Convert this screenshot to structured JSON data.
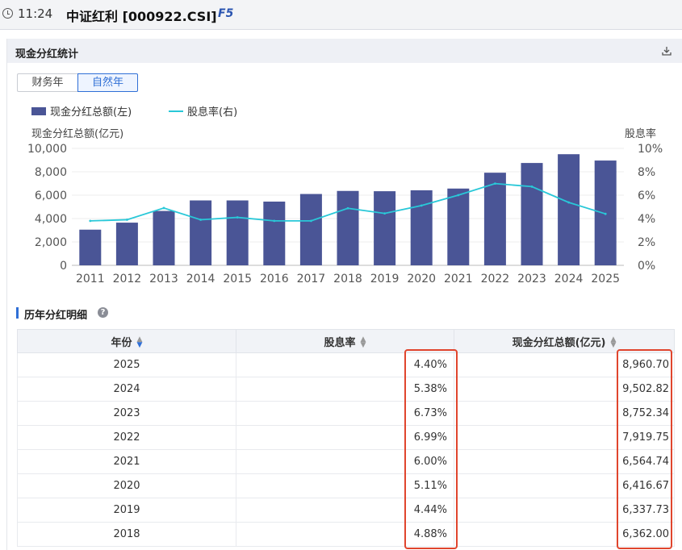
{
  "header": {
    "time": "11:24",
    "title": "中证红利 [000922.CSI]",
    "hotkey": "F5"
  },
  "panel": {
    "title": "现金分红统计",
    "download_icon": "download-icon",
    "toggle": {
      "options": [
        "财务年",
        "自然年"
      ],
      "selected": "自然年"
    }
  },
  "chart_data": {
    "type": "bar",
    "categories": [
      "2011",
      "2012",
      "2013",
      "2014",
      "2015",
      "2016",
      "2017",
      "2018",
      "2019",
      "2020",
      "2021",
      "2022",
      "2023",
      "2024",
      "2025"
    ],
    "series": [
      {
        "name": "现金分红总额(左)",
        "type": "bar",
        "axis": "left",
        "color": "#4a5596",
        "values": [
          3050,
          3650,
          4650,
          5550,
          5550,
          5450,
          6100,
          6362.0,
          6337.73,
          6416.67,
          6564.74,
          7919.75,
          8752.34,
          9502.82,
          8960.7
        ]
      },
      {
        "name": "股息率(右)",
        "type": "line",
        "axis": "right",
        "color": "#29c8d8",
        "values": [
          3.8,
          3.9,
          4.9,
          3.9,
          4.1,
          3.8,
          3.8,
          4.88,
          4.44,
          5.11,
          6.0,
          6.99,
          6.73,
          5.38,
          4.4
        ]
      }
    ],
    "ylabel_left": "现金分红总额(亿元)",
    "ylabel_right": "股息率",
    "ylim_left": [
      0,
      10000
    ],
    "ylim_right": [
      0,
      10
    ],
    "yticks_left": [
      "0",
      "2,000",
      "4,000",
      "6,000",
      "8,000",
      "10,000"
    ],
    "yticks_right": [
      "0%",
      "2%",
      "4%",
      "6%",
      "8%",
      "10%"
    ],
    "grid": true,
    "legend": "top-left"
  },
  "detail": {
    "title": "历年分红明细",
    "columns": [
      "年份",
      "股息率",
      "现金分红总额(亿元)"
    ],
    "rows": [
      {
        "year": "2025",
        "rate": "4.40%",
        "amount": "8,960.70"
      },
      {
        "year": "2024",
        "rate": "5.38%",
        "amount": "9,502.82"
      },
      {
        "year": "2023",
        "rate": "6.73%",
        "amount": "8,752.34"
      },
      {
        "year": "2022",
        "rate": "6.99%",
        "amount": "7,919.75"
      },
      {
        "year": "2021",
        "rate": "6.00%",
        "amount": "6,564.74"
      },
      {
        "year": "2020",
        "rate": "5.11%",
        "amount": "6,416.67"
      },
      {
        "year": "2019",
        "rate": "4.44%",
        "amount": "6,337.73"
      },
      {
        "year": "2018",
        "rate": "4.88%",
        "amount": "6,362.00"
      }
    ]
  }
}
